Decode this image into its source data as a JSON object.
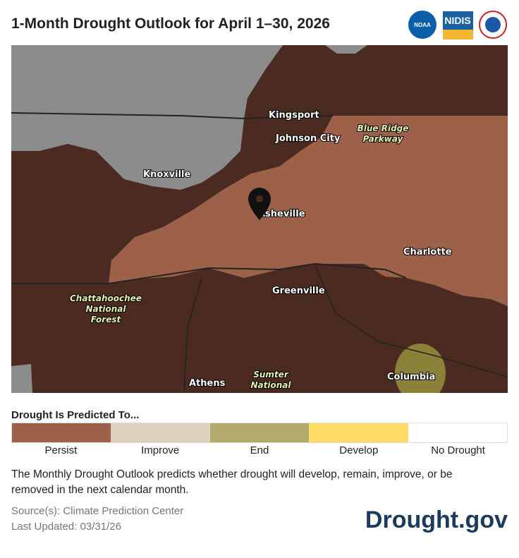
{
  "header": {
    "title": "1-Month Drought Outlook for April 1–30, 2026",
    "logos": [
      "NOAA",
      "NIDIS"
    ]
  },
  "map": {
    "labels": [
      [
        "Kingsport"
      ],
      [
        "Johnson City"
      ],
      [
        "Blue Ridge",
        "Parkway"
      ],
      [
        "Knoxville"
      ],
      [
        "Asheville"
      ],
      [
        "Charlotte"
      ],
      [
        "Greenville"
      ],
      [
        "Chattahoochee",
        "National",
        "Forest"
      ],
      [
        "Athens"
      ],
      [
        "Sumter",
        "National"
      ],
      [
        "Columbia"
      ]
    ]
  },
  "legend": {
    "title": "Drought Is Predicted To...",
    "items": [
      {
        "label": "Persist",
        "color": "#9d6049"
      },
      {
        "label": "Improve",
        "color": "#ddd1bd"
      },
      {
        "label": "End",
        "color": "#b2ab6d"
      },
      {
        "label": "Develop",
        "color": "#fedc66"
      },
      {
        "label": "No Drought",
        "color": "#ffffff"
      }
    ]
  },
  "description": "The Monthly Drought Outlook predicts whether drought will develop, remain, improve, or be removed in the next calendar month.",
  "footer": {
    "sources": "Source(s): Climate Prediction Center",
    "updated": "Last Updated: 03/31/26",
    "brand": "Drought.gov"
  }
}
